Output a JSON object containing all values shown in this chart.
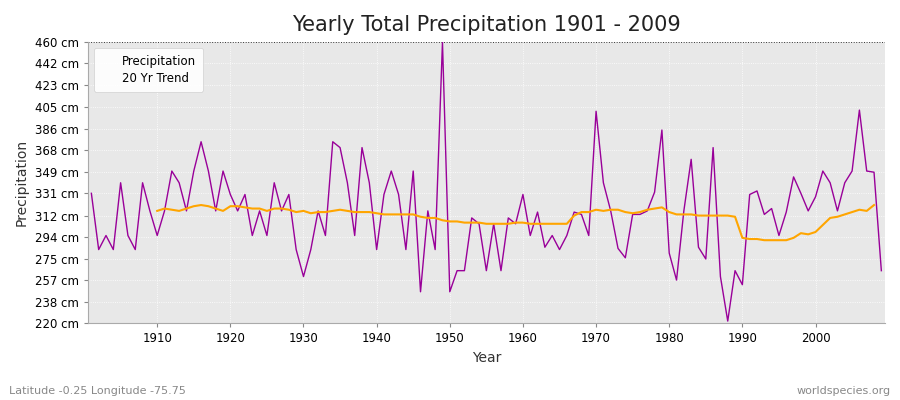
{
  "title": "Yearly Total Precipitation 1901 - 2009",
  "xlabel": "Year",
  "ylabel": "Precipitation",
  "subtitle": "Latitude -0.25 Longitude -75.75",
  "credit": "worldspecies.org",
  "years": [
    1901,
    1902,
    1903,
    1904,
    1905,
    1906,
    1907,
    1908,
    1909,
    1910,
    1911,
    1912,
    1913,
    1914,
    1915,
    1916,
    1917,
    1918,
    1919,
    1920,
    1921,
    1922,
    1923,
    1924,
    1925,
    1926,
    1927,
    1928,
    1929,
    1930,
    1931,
    1932,
    1933,
    1934,
    1935,
    1936,
    1937,
    1938,
    1939,
    1940,
    1941,
    1942,
    1943,
    1944,
    1945,
    1946,
    1947,
    1948,
    1949,
    1950,
    1951,
    1952,
    1953,
    1954,
    1955,
    1956,
    1957,
    1958,
    1959,
    1960,
    1961,
    1962,
    1963,
    1964,
    1965,
    1966,
    1967,
    1968,
    1969,
    1970,
    1971,
    1972,
    1973,
    1974,
    1975,
    1976,
    1977,
    1978,
    1979,
    1980,
    1981,
    1982,
    1983,
    1984,
    1985,
    1986,
    1987,
    1988,
    1989,
    1990,
    1991,
    1992,
    1993,
    1994,
    1995,
    1996,
    1997,
    1998,
    1999,
    2000,
    2001,
    2002,
    2003,
    2004,
    2005,
    2006,
    2007,
    2008,
    2009
  ],
  "precipitation": [
    331,
    283,
    295,
    283,
    340,
    295,
    283,
    340,
    316,
    295,
    316,
    350,
    340,
    316,
    350,
    375,
    350,
    316,
    350,
    330,
    316,
    330,
    295,
    316,
    295,
    340,
    316,
    330,
    283,
    260,
    283,
    316,
    295,
    375,
    370,
    340,
    295,
    370,
    340,
    283,
    330,
    350,
    330,
    283,
    350,
    247,
    316,
    283,
    460,
    247,
    265,
    265,
    310,
    305,
    265,
    305,
    265,
    310,
    305,
    330,
    295,
    315,
    285,
    295,
    283,
    295,
    315,
    313,
    295,
    401,
    340,
    316,
    284,
    276,
    313,
    313,
    316,
    332,
    385,
    280,
    257,
    316,
    360,
    285,
    275,
    370,
    260,
    222,
    265,
    253,
    330,
    333,
    313,
    318,
    295,
    315,
    345,
    331,
    316,
    328,
    350,
    340,
    316,
    340,
    350,
    402,
    350,
    349,
    265
  ],
  "trend": [
    null,
    null,
    null,
    null,
    null,
    null,
    null,
    null,
    null,
    316,
    318,
    317,
    316,
    318,
    320,
    321,
    320,
    318,
    316,
    320,
    320,
    319,
    318,
    318,
    316,
    318,
    318,
    317,
    315,
    316,
    314,
    315,
    315,
    316,
    317,
    316,
    315,
    315,
    315,
    314,
    313,
    313,
    313,
    313,
    313,
    311,
    310,
    310,
    308,
    307,
    307,
    306,
    306,
    306,
    305,
    305,
    305,
    305,
    306,
    306,
    305,
    305,
    305,
    305,
    305,
    305,
    312,
    315,
    315,
    317,
    316,
    317,
    317,
    315,
    314,
    315,
    317,
    318,
    319,
    315,
    313,
    313,
    313,
    312,
    312,
    312,
    312,
    312,
    311,
    293,
    292,
    292,
    291,
    291,
    291,
    291,
    293,
    297,
    296,
    298,
    304,
    310,
    311,
    313,
    315,
    317,
    316,
    321,
    null
  ],
  "precip_color": "#990099",
  "trend_color": "#FFA500",
  "fig_bg_color": "#FFFFFF",
  "plot_bg_color": "#E8E8E8",
  "grid_color": "#FFFFFF",
  "top_line_color": "#333333",
  "ylim": [
    220,
    460
  ],
  "ytick_values": [
    220,
    238,
    257,
    275,
    294,
    312,
    331,
    349,
    368,
    386,
    405,
    423,
    442,
    460
  ],
  "xtick_values": [
    1910,
    1920,
    1930,
    1940,
    1950,
    1960,
    1970,
    1980,
    1990,
    2000
  ],
  "title_fontsize": 15,
  "axis_label_fontsize": 10,
  "tick_fontsize": 8.5,
  "subtitle_fontsize": 8,
  "credit_fontsize": 8
}
